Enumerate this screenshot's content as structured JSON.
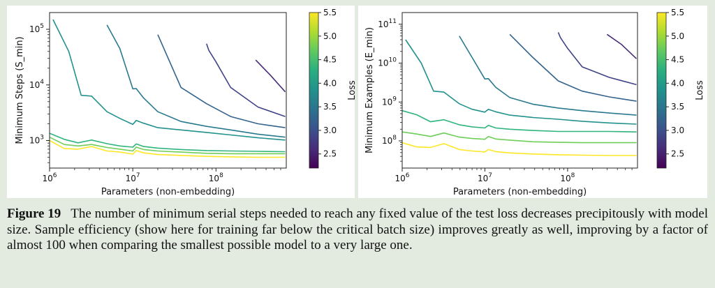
{
  "chart_data": [
    {
      "type": "line",
      "xlabel": "Parameters (non-embedding)",
      "ylabel": "Minimum Steps (S_min)",
      "xscale": "log",
      "yscale": "log",
      "xlim": [
        1000000,
        700000000
      ],
      "ylim": [
        320,
        200000
      ],
      "xticks": [
        {
          "value": 1000000,
          "base": "10",
          "exp": "6"
        },
        {
          "value": 10000000,
          "base": "10",
          "exp": "7"
        },
        {
          "value": 100000000,
          "base": "10",
          "exp": "8"
        }
      ],
      "yticks": [
        {
          "value": 1000,
          "base": "10",
          "exp": "3"
        },
        {
          "value": 10000,
          "base": "10",
          "exp": "4"
        },
        {
          "value": 100000,
          "base": "10",
          "exp": "5"
        }
      ],
      "colorbar": {
        "label": "Loss",
        "range": [
          2.2,
          5.5
        ],
        "ticks": [
          "2.5",
          "3.0",
          "3.5",
          "4.0",
          "4.5",
          "5.0",
          "5.5"
        ]
      },
      "series": [
        {
          "loss": 5.1,
          "color": "#21918c",
          "points": [
            [
              1100000.0,
              150000
            ],
            [
              1700000.0,
              40000
            ],
            [
              2400000.0,
              6500
            ],
            [
              3200000.0,
              6300
            ],
            [
              4900000.0,
              3300
            ],
            [
              7000000.0,
              2500
            ],
            [
              10000000.0,
              1950
            ],
            [
              11000000.0,
              2300
            ],
            [
              13500000.0,
              2050
            ],
            [
              20000000.0,
              1700
            ],
            [
              38000000.0,
              1550
            ],
            [
              77000000.0,
              1400
            ],
            [
              150000000.0,
              1260
            ],
            [
              320000000.0,
              1120
            ],
            [
              680000000.0,
              1020
            ]
          ]
        },
        {
          "loss": 4.7,
          "color": "#2fb47c",
          "points": [
            [
              1000000.0,
              1350
            ],
            [
              1500000.0,
              1050
            ],
            [
              2200000.0,
              910
            ],
            [
              3200000.0,
              1020
            ],
            [
              4900000.0,
              880
            ],
            [
              7000000.0,
              800
            ],
            [
              10000000.0,
              760
            ],
            [
              11000000.0,
              870
            ],
            [
              13500000.0,
              780
            ],
            [
              20000000.0,
              730
            ],
            [
              38000000.0,
              690
            ],
            [
              77000000.0,
              660
            ],
            [
              150000000.0,
              650
            ],
            [
              320000000.0,
              640
            ],
            [
              680000000.0,
              630
            ]
          ]
        },
        {
          "loss": 4.3,
          "color": "#6ece58",
          "points": [
            [
              1000000.0,
              1150
            ],
            [
              1500000.0,
              850
            ],
            [
              2200000.0,
              800
            ],
            [
              3200000.0,
              850
            ],
            [
              4900000.0,
              750
            ],
            [
              7000000.0,
              700
            ],
            [
              10000000.0,
              650
            ],
            [
              11000000.0,
              760
            ],
            [
              13500000.0,
              690
            ],
            [
              20000000.0,
              650
            ],
            [
              38000000.0,
              620
            ],
            [
              77000000.0,
              590
            ],
            [
              150000000.0,
              580
            ],
            [
              320000000.0,
              580
            ],
            [
              680000000.0,
              580
            ]
          ]
        },
        {
          "loss": 3.9,
          "color": "#fde725",
          "points": [
            [
              1000000.0,
              1000
            ],
            [
              1500000.0,
              720
            ],
            [
              2200000.0,
              700
            ],
            [
              3200000.0,
              780
            ],
            [
              4900000.0,
              650
            ],
            [
              7000000.0,
              620
            ],
            [
              10000000.0,
              570
            ],
            [
              11000000.0,
              660
            ],
            [
              13500000.0,
              600
            ],
            [
              20000000.0,
              560
            ],
            [
              38000000.0,
              540
            ],
            [
              77000000.0,
              520
            ],
            [
              150000000.0,
              510
            ],
            [
              320000000.0,
              500
            ],
            [
              680000000.0,
              500
            ]
          ]
        },
        {
          "loss": 3.7,
          "color": "#29798e",
          "points": [
            [
              4900000.0,
              120000
            ],
            [
              7000000.0,
              45000
            ],
            [
              10000000.0,
              8500
            ],
            [
              11000000.0,
              8600
            ],
            [
              13500000.0,
              5800
            ],
            [
              20000000.0,
              3300
            ],
            [
              38000000.0,
              2200
            ],
            [
              77000000.0,
              1800
            ],
            [
              150000000.0,
              1550
            ],
            [
              320000000.0,
              1300
            ],
            [
              680000000.0,
              1150
            ]
          ]
        },
        {
          "loss": 3.3,
          "color": "#33638d",
          "points": [
            [
              20000000.0,
              80000
            ],
            [
              38000000.0,
              9000
            ],
            [
              77000000.0,
              4600
            ],
            [
              150000000.0,
              2700
            ],
            [
              320000000.0,
              2000
            ],
            [
              680000000.0,
              1700
            ]
          ]
        },
        {
          "loss": 3.0,
          "color": "#404387",
          "points": [
            [
              77000000.0,
              55000
            ],
            [
              82000000.0,
              42000
            ],
            [
              100000000.0,
              26000
            ],
            [
              150000000.0,
              9000
            ],
            [
              320000000.0,
              4000
            ],
            [
              680000000.0,
              2700
            ]
          ]
        },
        {
          "loss": 2.7,
          "color": "#472c7a",
          "points": [
            [
              300000000.0,
              28000
            ],
            [
              450000000.0,
              15000
            ],
            [
              680000000.0,
              7500
            ]
          ]
        }
      ]
    },
    {
      "type": "line",
      "xlabel": "Parameters (non-embedding)",
      "ylabel": "Minimum Examples (E_min)",
      "xscale": "log",
      "yscale": "log",
      "xlim": [
        1000000,
        700000000
      ],
      "ylim": [
        20000000,
        200000000000
      ],
      "xticks": [
        {
          "value": 1000000,
          "base": "10",
          "exp": "6"
        },
        {
          "value": 10000000,
          "base": "10",
          "exp": "7"
        },
        {
          "value": 100000000,
          "base": "10",
          "exp": "8"
        }
      ],
      "yticks": [
        {
          "value": 100000000,
          "base": "10",
          "exp": "8"
        },
        {
          "value": 1000000000,
          "base": "10",
          "exp": "9"
        },
        {
          "value": 10000000000,
          "base": "10",
          "exp": "10"
        },
        {
          "value": 100000000000,
          "base": "10",
          "exp": "11"
        }
      ],
      "colorbar": {
        "label": "Loss",
        "range": [
          2.2,
          5.5
        ],
        "ticks": [
          "2.5",
          "3.0",
          "3.5",
          "4.0",
          "4.5",
          "5.0",
          "5.5"
        ]
      },
      "series": [
        {
          "loss": 5.1,
          "color": "#21918c",
          "points": [
            [
              1100000.0,
              40000000000
            ],
            [
              1700000.0,
              10000000000
            ],
            [
              2400000.0,
              1900000000
            ],
            [
              3200000.0,
              1800000000
            ],
            [
              4900000.0,
              900000000
            ],
            [
              7000000.0,
              650000000
            ],
            [
              10000000.0,
              550000000
            ],
            [
              11000000.0,
              650000000
            ],
            [
              13500000.0,
              560000000
            ],
            [
              20000000.0,
              460000000
            ],
            [
              38000000.0,
              400000000
            ],
            [
              77000000.0,
              360000000
            ],
            [
              150000000.0,
              320000000
            ],
            [
              320000000.0,
              290000000
            ],
            [
              680000000.0,
              270000000
            ]
          ]
        },
        {
          "loss": 4.7,
          "color": "#2fb47c",
          "points": [
            [
              1000000.0,
              600000000
            ],
            [
              1500000.0,
              470000000
            ],
            [
              2200000.0,
              310000000
            ],
            [
              3200000.0,
              350000000
            ],
            [
              4900000.0,
              260000000
            ],
            [
              7000000.0,
              230000000
            ],
            [
              10000000.0,
              215000000
            ],
            [
              11000000.0,
              250000000
            ],
            [
              13500000.0,
              215000000
            ],
            [
              20000000.0,
              200000000
            ],
            [
              38000000.0,
              185000000
            ],
            [
              77000000.0,
              175000000
            ],
            [
              150000000.0,
              175000000
            ],
            [
              320000000.0,
              175000000
            ],
            [
              680000000.0,
              170000000
            ]
          ]
        },
        {
          "loss": 4.3,
          "color": "#6ece58",
          "points": [
            [
              1000000.0,
              170000000
            ],
            [
              1500000.0,
              150000000
            ],
            [
              2200000.0,
              130000000
            ],
            [
              3200000.0,
              160000000
            ],
            [
              4900000.0,
              125000000
            ],
            [
              7000000.0,
              115000000
            ],
            [
              10000000.0,
              110000000
            ],
            [
              11000000.0,
              130000000
            ],
            [
              13500000.0,
              112000000
            ],
            [
              20000000.0,
              105000000
            ],
            [
              38000000.0,
              95000000
            ],
            [
              77000000.0,
              92000000
            ],
            [
              150000000.0,
              90000000
            ],
            [
              320000000.0,
              90000000
            ],
            [
              680000000.0,
              90000000
            ]
          ]
        },
        {
          "loss": 3.9,
          "color": "#fde725",
          "points": [
            [
              1000000.0,
              90000000
            ],
            [
              1500000.0,
              70000000
            ],
            [
              2200000.0,
              68000000
            ],
            [
              3200000.0,
              85000000
            ],
            [
              4900000.0,
              60000000
            ],
            [
              7000000.0,
              55000000
            ],
            [
              10000000.0,
              52000000
            ],
            [
              11000000.0,
              60000000
            ],
            [
              13500000.0,
              53000000
            ],
            [
              20000000.0,
              49000000
            ],
            [
              38000000.0,
              46000000
            ],
            [
              77000000.0,
              44000000
            ],
            [
              150000000.0,
              43000000
            ],
            [
              320000000.0,
              42000000
            ],
            [
              680000000.0,
              42000000
            ]
          ]
        },
        {
          "loss": 3.7,
          "color": "#29798e",
          "points": [
            [
              4900000.0,
              50000000000
            ],
            [
              7000000.0,
              14000000000
            ],
            [
              10000000.0,
              3900000000
            ],
            [
              11000000.0,
              4000000000
            ],
            [
              13500000.0,
              2400000000
            ],
            [
              20000000.0,
              1300000000
            ],
            [
              38000000.0,
              880000000
            ],
            [
              77000000.0,
              700000000
            ],
            [
              150000000.0,
              600000000
            ],
            [
              320000000.0,
              520000000
            ],
            [
              680000000.0,
              460000000
            ]
          ]
        },
        {
          "loss": 3.3,
          "color": "#33638d",
          "points": [
            [
              20000000.0,
              55000000000
            ],
            [
              38000000.0,
              14000000000
            ],
            [
              77000000.0,
              3500000000
            ],
            [
              150000000.0,
              1900000000
            ],
            [
              320000000.0,
              1350000000
            ],
            [
              680000000.0,
              1050000000
            ]
          ]
        },
        {
          "loss": 3.0,
          "color": "#404387",
          "points": [
            [
              77000000.0,
              62000000000
            ],
            [
              82000000.0,
              45000000000
            ],
            [
              100000000.0,
              24000000000
            ],
            [
              150000000.0,
              8000000000
            ],
            [
              320000000.0,
              4300000000
            ],
            [
              680000000.0,
              2800000000
            ]
          ]
        },
        {
          "loss": 2.7,
          "color": "#472c7a",
          "points": [
            [
              300000000.0,
              55000000000
            ],
            [
              450000000.0,
              30000000000
            ],
            [
              680000000.0,
              13000000000
            ]
          ]
        }
      ]
    }
  ],
  "caption": {
    "label": "Figure 19",
    "text": "The number of minimum serial steps needed to reach any fixed value of the test loss decreases precipitously with model size. Sample efficiency (show here for training far below the critical batch size) improves greatly as well, improving by a factor of almost 100 when comparing the smallest possible model to a very large one."
  }
}
